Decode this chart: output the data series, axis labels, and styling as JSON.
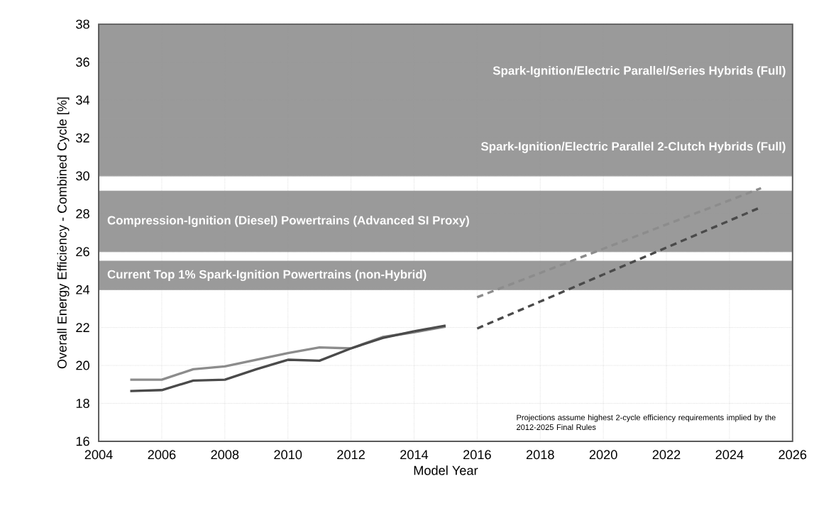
{
  "chart_data": {
    "type": "line",
    "xlabel": "Model Year",
    "ylabel": "Overall Energy Efficiency - Combined Cycle [%]",
    "x": [
      2005,
      2006,
      2007,
      2008,
      2009,
      2010,
      2011,
      2012,
      2013,
      2014,
      2015,
      2016,
      2025
    ],
    "series": [
      {
        "color": "#8c8c8c",
        "values": [
          19.25,
          19.25,
          19.8,
          19.95,
          20.3,
          20.65,
          20.95,
          20.9,
          21.5,
          21.75,
          22.05,
          null,
          null
        ]
      },
      {
        "color": "#4a4a4a",
        "values": [
          18.65,
          18.7,
          19.2,
          19.25,
          19.8,
          20.3,
          20.25,
          20.9,
          21.45,
          21.8,
          22.1,
          null,
          null
        ]
      },
      {
        "color": "#8c8c8c",
        "values": [
          null,
          null,
          null,
          null,
          null,
          null,
          null,
          null,
          null,
          null,
          null,
          23.6,
          29.35
        ],
        "line_style": "dashed"
      },
      {
        "color": "#4a4a4a",
        "values": [
          null,
          null,
          null,
          null,
          null,
          null,
          null,
          null,
          null,
          null,
          null,
          21.95,
          28.35
        ],
        "line_style": "dashed"
      }
    ],
    "xlim": [
      2004,
      2026
    ],
    "ylim": [
      16,
      38
    ],
    "xticks": [
      2004,
      2006,
      2008,
      2010,
      2012,
      2014,
      2016,
      2018,
      2020,
      2022,
      2024,
      2026
    ],
    "yticks": [
      16,
      18,
      20,
      22,
      24,
      26,
      28,
      30,
      32,
      34,
      36,
      38
    ],
    "bands": [
      {
        "axis": "y",
        "from": 24,
        "to": 25.5,
        "label": "Current Top 1% Spark-Ignition Powertrains (non-Hybrid)",
        "color": "#9a9a9a"
      },
      {
        "axis": "y",
        "from": 26,
        "to": 29.2,
        "label": "Compression-Ignition (Diesel) Powertrains (Advanced SI Proxy)",
        "color": "#9a9a9a"
      },
      {
        "axis": "y",
        "from": 30,
        "to": 33,
        "label": "Spark-Ignition/Electric Parallel 2-Clutch Hybrids (Full)",
        "color": "#9a9a9a"
      },
      {
        "axis": "y",
        "from": 33,
        "to": 38,
        "label": "Spark-Ignition/Electric Parallel/Series Hybrids (Full)",
        "color": "#9a9a9a"
      }
    ],
    "annotations": [
      "Projections assume highest 2-cycle efficiency requirements implied by the 2012-2025 Final Rules"
    ],
    "grid": true,
    "marker": "none",
    "line_style": "solid"
  }
}
